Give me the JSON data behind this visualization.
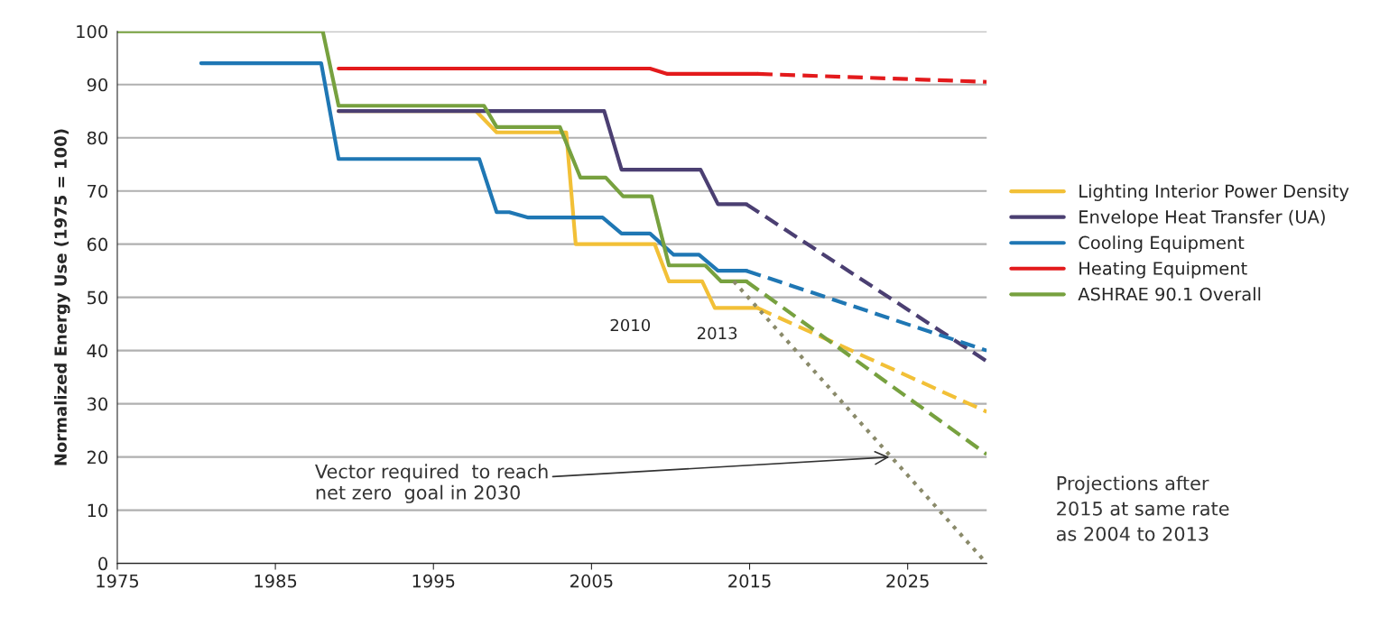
{
  "chart_data": {
    "type": "line",
    "ylabel": "Normalized Energy Use (1975 = 100)",
    "xlim": [
      1975,
      2030
    ],
    "xticks": [
      1975,
      1985,
      1995,
      2005,
      2015,
      2025
    ],
    "ylim": [
      0,
      100
    ],
    "yticks": [
      0,
      10,
      20,
      30,
      40,
      50,
      60,
      70,
      80,
      90,
      100
    ],
    "grid": "y",
    "legend": "right",
    "marker": "none",
    "line_style": "solid",
    "series": [
      {
        "name": "Lighting Interior Power Density",
        "color": "#f2c037",
        "x": [
          1989,
          1997.7,
          1999,
          2003.4,
          2004,
          2009,
          2009.9,
          2012,
          2012.8,
          2015.5
        ],
        "values": [
          85,
          85,
          81,
          81,
          60,
          60,
          53,
          53,
          48,
          48
        ]
      },
      {
        "name": "Envelope Heat Transfer (UA)",
        "color": "#4b3f72",
        "x": [
          1989,
          2005.8,
          2006.9,
          2011.9,
          2013,
          2014.8
        ],
        "values": [
          85,
          85,
          74,
          74,
          67.5,
          67.5
        ]
      },
      {
        "name": "Cooling Equipment",
        "color": "#1f77b4",
        "x": [
          1980.3,
          1987.9,
          1989,
          1997.9,
          1999,
          1999.8,
          2001,
          2005.7,
          2006.9,
          2008.7,
          2010.2,
          2011.8,
          2013,
          2014.8
        ],
        "values": [
          94,
          94,
          76,
          76,
          66,
          66,
          65,
          65,
          62,
          62,
          58,
          58,
          55,
          55
        ]
      },
      {
        "name": "Heating Equipment",
        "color": "#e31a1c",
        "x": [
          1989,
          2008.7,
          2009.8,
          2015.5
        ],
        "values": [
          93,
          93,
          92,
          92
        ]
      },
      {
        "name": "ASHRAE 90.1 Overall",
        "color": "#77a13f",
        "x": [
          1975,
          1988,
          1989,
          1998.2,
          1999,
          2003,
          2004.3,
          2005.9,
          2007,
          2008.8,
          2009.9,
          2012.2,
          2013.2,
          2014.8
        ],
        "values": [
          100,
          100,
          86,
          86,
          82,
          82,
          72.5,
          72.5,
          69,
          69,
          56,
          56,
          53,
          53
        ]
      },
      {
        "color": "#f2c037",
        "line_style": "dashed",
        "x": [
          2015.5,
          2030
        ],
        "values": [
          48,
          28.5
        ]
      },
      {
        "color": "#4b3f72",
        "line_style": "dashed",
        "x": [
          2014.8,
          2030
        ],
        "values": [
          67.5,
          38
        ]
      },
      {
        "color": "#1f77b4",
        "line_style": "dashed",
        "x": [
          2014.8,
          2030
        ],
        "values": [
          55,
          40
        ]
      },
      {
        "color": "#e31a1c",
        "line_style": "dashed",
        "x": [
          2015.5,
          2030
        ],
        "values": [
          92,
          90.5
        ]
      },
      {
        "color": "#77a13f",
        "line_style": "dashed",
        "x": [
          2014.8,
          2030
        ],
        "values": [
          53,
          20.5
        ]
      },
      {
        "color": "#8a8a6a",
        "line_style": "dotted",
        "x": [
          2014,
          2030
        ],
        "values": [
          53,
          0
        ]
      }
    ],
    "annotations": [
      "2010",
      "2013",
      {
        "text": "Vector required  to reach\nnet zero  goal in 2030",
        "x": 2024,
        "y": 20
      },
      "Projections after\n2015 at same rate\nas 2004 to 2013"
    ]
  }
}
